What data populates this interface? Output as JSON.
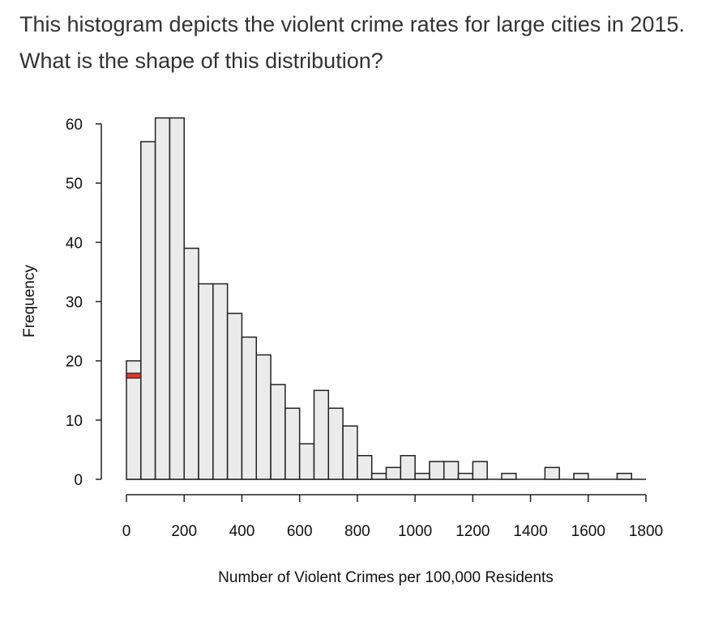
{
  "question": "This histogram depicts the violent crime rates for large cities in 2015. What is the shape of this distribution?",
  "chart_data": {
    "type": "bar",
    "subtype": "histogram",
    "xlabel": "Number of Violent Crimes per 100,000 Residents",
    "ylabel": "Frequency",
    "bin_width": 50,
    "bin_starts": [
      0,
      50,
      100,
      150,
      200,
      250,
      300,
      350,
      400,
      450,
      500,
      550,
      600,
      650,
      700,
      750,
      800,
      850,
      900,
      950,
      1000,
      1050,
      1100,
      1150,
      1200,
      1250,
      1300,
      1350,
      1400,
      1450,
      1500,
      1550,
      1600,
      1650,
      1700,
      1750
    ],
    "values": [
      20,
      57,
      61,
      61,
      39,
      33,
      33,
      28,
      24,
      21,
      16,
      12,
      6,
      15,
      12,
      9,
      4,
      1,
      2,
      4,
      1,
      3,
      3,
      1,
      3,
      0,
      1,
      0,
      0,
      2,
      0,
      1,
      0,
      0,
      1,
      0
    ],
    "xlim": [
      0,
      1800
    ],
    "ylim": [
      0,
      60
    ],
    "xticks": [
      "0",
      "200",
      "400",
      "600",
      "800",
      "1000",
      "1200",
      "1400",
      "1600",
      "1800"
    ],
    "yticks": [
      "0",
      "10",
      "20",
      "30",
      "40",
      "50",
      "60"
    ],
    "highlight": {
      "bin_start": 0,
      "value": 17.5,
      "color": "#e0362c"
    },
    "bar_color": "#ebebeb",
    "grid": false
  }
}
